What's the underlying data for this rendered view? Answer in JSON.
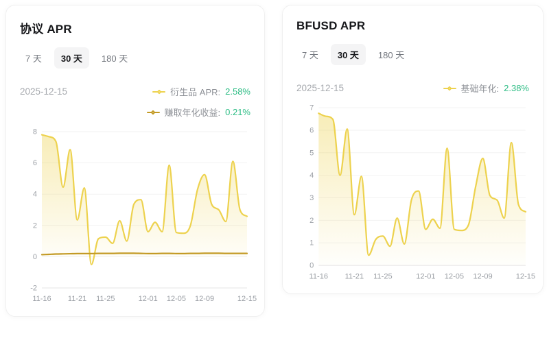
{
  "cards": [
    {
      "title": "协议 APR",
      "tabs": [
        {
          "label": "7 天"
        },
        {
          "label": "30 天"
        },
        {
          "label": "180 天"
        }
      ],
      "active_tab": "30 天",
      "date": "2025-12-15",
      "legend": [
        {
          "label": "衍生品 APR:",
          "value": "2.58%",
          "color": "#EDD24E"
        },
        {
          "label": "赚取年化收益:",
          "value": "0.21%",
          "color": "#C39A25"
        }
      ]
    },
    {
      "title": "BFUSD APR",
      "tabs": [
        {
          "label": "7 天"
        },
        {
          "label": "30 天"
        },
        {
          "label": "180 天"
        }
      ],
      "active_tab": "30 天",
      "date": "2025-12-15",
      "legend": [
        {
          "label": "基础年化:",
          "value": "2.38%",
          "color": "#EDD24E"
        }
      ]
    }
  ],
  "colors": {
    "accent_yellow": "#EDD24E",
    "accent_gold": "#C39A25",
    "value_green": "#2EBD85",
    "axis_label": "#9ca0a6",
    "gridline": "#f2f2f2",
    "axis_line": "#e4e4e4"
  },
  "chart_data": [
    {
      "type": "line",
      "title": "协议 APR",
      "smooth": true,
      "grid": "horizontal",
      "legend_position": "top-right",
      "n_points": 30,
      "x_start": "11-16",
      "x_end": "12-15",
      "x_tick_days": [
        0,
        5,
        9,
        15,
        19,
        23,
        29
      ],
      "x_tick_labels": [
        "11-16",
        "11-21",
        "11-25",
        "12-01",
        "12-05",
        "12-09",
        "12-15"
      ],
      "ylim": [
        -2,
        8
      ],
      "y_ticks": [
        8,
        6,
        4,
        2,
        0,
        -2
      ],
      "series": [
        {
          "name": "衍生品 APR",
          "current": "2.58%",
          "color": "#EDD24E",
          "area": true,
          "values": [
            7.8,
            7.68,
            7.35,
            4.45,
            6.85,
            2.35,
            4.4,
            -0.5,
            1.15,
            1.25,
            0.85,
            2.3,
            1.0,
            3.35,
            3.65,
            1.6,
            2.2,
            1.6,
            5.85,
            1.55,
            1.5,
            2.0,
            4.3,
            5.25,
            3.35,
            3.0,
            2.25,
            6.1,
            3.0,
            2.58
          ]
        },
        {
          "name": "赚取年化收益",
          "current": "0.21%",
          "color": "#C39A25",
          "area": false,
          "values": [
            0.13,
            0.15,
            0.17,
            0.18,
            0.19,
            0.2,
            0.2,
            0.2,
            0.21,
            0.21,
            0.21,
            0.22,
            0.22,
            0.22,
            0.21,
            0.2,
            0.2,
            0.21,
            0.21,
            0.2,
            0.2,
            0.21,
            0.21,
            0.22,
            0.22,
            0.22,
            0.21,
            0.21,
            0.21,
            0.21
          ]
        }
      ]
    },
    {
      "type": "line",
      "title": "BFUSD APR",
      "smooth": true,
      "grid": "horizontal",
      "legend_position": "top-right",
      "n_points": 30,
      "x_start": "11-16",
      "x_end": "12-15",
      "x_tick_days": [
        0,
        5,
        9,
        15,
        19,
        23,
        29
      ],
      "x_tick_labels": [
        "11-16",
        "11-21",
        "11-25",
        "12-01",
        "12-05",
        "12-09",
        "12-15"
      ],
      "ylim": [
        0,
        7
      ],
      "y_ticks": [
        7,
        6,
        5,
        4,
        3,
        2,
        1,
        0
      ],
      "series": [
        {
          "name": "基础年化",
          "current": "2.38%",
          "color": "#EDD24E",
          "area": true,
          "values": [
            6.75,
            6.62,
            6.48,
            4.0,
            6.05,
            2.25,
            3.95,
            0.45,
            1.15,
            1.3,
            0.85,
            2.1,
            0.95,
            2.9,
            3.3,
            1.6,
            2.05,
            1.65,
            5.2,
            1.6,
            1.55,
            1.8,
            3.5,
            4.75,
            3.1,
            2.9,
            2.1,
            5.45,
            2.7,
            2.38
          ]
        }
      ]
    }
  ]
}
